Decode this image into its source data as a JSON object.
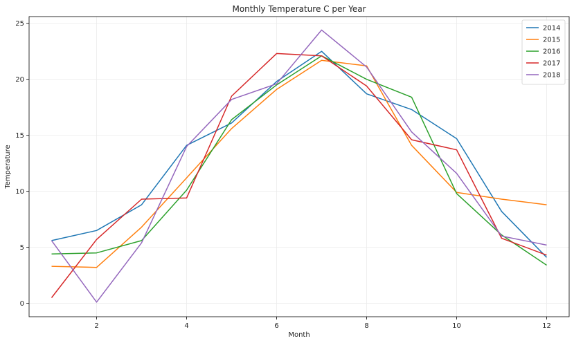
{
  "chart_data": {
    "type": "line",
    "title": "Monthly Temperature C per Year",
    "xlabel": "Month",
    "ylabel": "Temperature",
    "x": [
      1,
      2,
      3,
      4,
      5,
      6,
      7,
      8,
      9,
      10,
      11,
      12
    ],
    "xlim": [
      0.5,
      12.5
    ],
    "ylim": [
      -1.2,
      25.6
    ],
    "xticks": [
      2,
      4,
      6,
      8,
      10,
      12
    ],
    "yticks": [
      0,
      5,
      10,
      15,
      20,
      25
    ],
    "grid": true,
    "legend_position": "top-right",
    "series": [
      {
        "name": "2014",
        "color": "#1f77b4",
        "values": [
          5.6,
          6.5,
          8.8,
          14.1,
          16.1,
          19.8,
          22.5,
          18.7,
          17.3,
          14.7,
          8.2,
          4.1
        ]
      },
      {
        "name": "2015",
        "color": "#ff7f0e",
        "values": [
          3.3,
          3.2,
          6.8,
          11.2,
          15.6,
          19.1,
          21.7,
          21.2,
          14.1,
          9.9,
          9.3,
          8.8
        ]
      },
      {
        "name": "2016",
        "color": "#2ca02c",
        "values": [
          4.4,
          4.5,
          5.6,
          10.1,
          16.4,
          19.5,
          22.1,
          20.0,
          18.4,
          9.8,
          6.1,
          3.4
        ]
      },
      {
        "name": "2017",
        "color": "#d62728",
        "values": [
          0.5,
          5.7,
          9.3,
          9.4,
          18.5,
          22.3,
          22.1,
          19.4,
          14.6,
          13.7,
          5.8,
          4.3
        ]
      },
      {
        "name": "2018",
        "color": "#9467bd",
        "values": [
          5.6,
          0.1,
          5.4,
          14.0,
          18.2,
          19.6,
          24.4,
          21.1,
          15.3,
          11.6,
          6.0,
          5.2
        ]
      }
    ]
  }
}
